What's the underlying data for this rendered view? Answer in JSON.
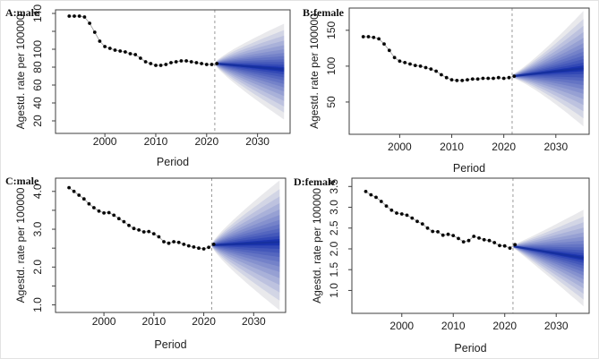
{
  "figure": {
    "description": "Four-panel fan chart figure of observed and projected age-standardized rates",
    "background": "#ffffff"
  },
  "styles": {
    "axis_color": "#3f3f3f",
    "text_color": "#1c1c1c",
    "point_color": "#080808",
    "series_line_color": "#9a9a9a",
    "cutoff_line_color": "#9b9b9b",
    "fan_inner_blue": "#1b34ae",
    "fan_outer_gray": "#e9e9ec",
    "fan_median_blue": "#16309f"
  },
  "chart_data": [
    {
      "type": "line",
      "id": "A",
      "title": "A:male",
      "ylabel": "Agestd. rate per 100000",
      "xlabel": "Period",
      "xlim": [
        1990.3,
        2036.4
      ],
      "ylim": [
        6,
        144
      ],
      "xticks": [
        2000,
        2010,
        2020,
        2030
      ],
      "yticks": [
        {
          "v": 20,
          "label": "20"
        },
        {
          "v": 40,
          "label": "40"
        },
        {
          "v": 60,
          "label": "60"
        },
        {
          "v": 80,
          "label": "80"
        },
        {
          "v": 100,
          "label": "100"
        },
        {
          "v": 120,
          "label": ""
        },
        {
          "v": 140,
          "label": "140"
        }
      ],
      "cutoff_year": 2021.6,
      "observed": {
        "years": [
          1993,
          1994,
          1995,
          1996,
          1997,
          1998,
          1999,
          2000,
          2001,
          2002,
          2003,
          2004,
          2005,
          2006,
          2007,
          2008,
          2009,
          2010,
          2011,
          2012,
          2013,
          2014,
          2015,
          2016,
          2017,
          2018,
          2019,
          2020,
          2021,
          2022
        ],
        "values": [
          137,
          137,
          137,
          136,
          129,
          119,
          109,
          103,
          101,
          99,
          98,
          97,
          95,
          94,
          90,
          86,
          84,
          82,
          82,
          83,
          85,
          86,
          87,
          87,
          86,
          85,
          84,
          83,
          83,
          84
        ]
      },
      "forecast": {
        "x_start": 2021.7,
        "x_end": 2035.2,
        "median_start": 84,
        "median_end": 77.5,
        "upper_half_end": 51,
        "lower_half_end": 56,
        "curve": 0.85
      }
    },
    {
      "type": "line",
      "id": "B",
      "title": "B:female",
      "ylabel": "Agestd. rate per 100000",
      "xlabel": "Period",
      "xlim": [
        1990.3,
        2036.4
      ],
      "ylim": [
        5,
        181
      ],
      "xticks": [
        2000,
        2010,
        2020,
        2030
      ],
      "yticks": [
        {
          "v": 50,
          "label": "50"
        },
        {
          "v": 100,
          "label": "100"
        },
        {
          "v": 150,
          "label": "150"
        }
      ],
      "cutoff_year": 2021.6,
      "observed": {
        "years": [
          1993,
          1994,
          1995,
          1996,
          1997,
          1998,
          1999,
          2000,
          2001,
          2002,
          2003,
          2004,
          2005,
          2006,
          2007,
          2008,
          2009,
          2010,
          2011,
          2012,
          2013,
          2014,
          2015,
          2016,
          2017,
          2018,
          2019,
          2020,
          2021,
          2022
        ],
        "values": [
          141,
          141,
          140,
          138,
          131,
          122,
          112,
          107,
          105,
          103,
          101,
          100,
          98,
          96,
          93,
          88,
          84,
          81,
          80,
          80,
          81,
          82,
          82,
          83,
          83,
          83,
          84,
          83,
          84,
          86
        ]
      },
      "forecast": {
        "x_start": 2021.7,
        "x_end": 2035.3,
        "median_start": 86,
        "median_end": 97,
        "upper_half_end": 80,
        "lower_half_end": 81,
        "curve": 1.2
      }
    },
    {
      "type": "line",
      "id": "C",
      "title": "C:male",
      "ylabel": "Agestd. rate per 100000",
      "xlabel": "Period",
      "xlim": [
        1990.3,
        2036.4
      ],
      "ylim": [
        0.8,
        4.35
      ],
      "xticks": [
        2000,
        2010,
        2020,
        2030
      ],
      "yticks": [
        {
          "v": 1,
          "label": "1.0"
        },
        {
          "v": 1.5,
          "label": ""
        },
        {
          "v": 2,
          "label": "2.0"
        },
        {
          "v": 2.5,
          "label": ""
        },
        {
          "v": 3,
          "label": "3.0"
        },
        {
          "v": 3.5,
          "label": ""
        },
        {
          "v": 4,
          "label": "4.0"
        }
      ],
      "cutoff_year": 2021.6,
      "observed": {
        "years": [
          1993,
          1994,
          1995,
          1996,
          1997,
          1998,
          1999,
          2000,
          2001,
          2002,
          2003,
          2004,
          2005,
          2006,
          2007,
          2008,
          2009,
          2010,
          2011,
          2012,
          2013,
          2014,
          2015,
          2016,
          2017,
          2018,
          2019,
          2020,
          2021,
          2022
        ],
        "values": [
          4.1,
          4.0,
          3.9,
          3.8,
          3.67,
          3.57,
          3.48,
          3.43,
          3.44,
          3.37,
          3.28,
          3.2,
          3.1,
          3.02,
          2.98,
          2.93,
          2.94,
          2.88,
          2.8,
          2.67,
          2.63,
          2.67,
          2.65,
          2.6,
          2.56,
          2.53,
          2.5,
          2.48,
          2.52,
          2.6
        ]
      },
      "forecast": {
        "x_start": 2021.7,
        "x_end": 2035.2,
        "median_start": 2.58,
        "median_end": 2.66,
        "upper_half_end": 1.63,
        "lower_half_end": 1.8,
        "curve": 0.85
      }
    },
    {
      "type": "line",
      "id": "D",
      "title": "D:female",
      "ylabel": "Agestd. rate per 100000",
      "xlabel": "Period",
      "xlim": [
        1990.3,
        2036.4
      ],
      "ylim": [
        0.45,
        3.7
      ],
      "xticks": [
        2000,
        2010,
        2020,
        2030
      ],
      "yticks": [
        {
          "v": 1,
          "label": "1.0"
        },
        {
          "v": 1.5,
          "label": "1.5"
        },
        {
          "v": 2,
          "label": "2.0"
        },
        {
          "v": 2.5,
          "label": "2.5"
        },
        {
          "v": 3,
          "label": "3.0"
        },
        {
          "v": 3.5,
          "label": "3.5"
        }
      ],
      "cutoff_year": 2021.6,
      "observed": {
        "years": [
          1993,
          1994,
          1995,
          1996,
          1997,
          1998,
          1999,
          2000,
          2001,
          2002,
          2003,
          2004,
          2005,
          2006,
          2007,
          2008,
          2009,
          2010,
          2011,
          2012,
          2013,
          2014,
          2015,
          2016,
          2017,
          2018,
          2019,
          2020,
          2021,
          2022
        ],
        "values": [
          3.38,
          3.3,
          3.24,
          3.14,
          3.03,
          2.93,
          2.86,
          2.84,
          2.81,
          2.74,
          2.66,
          2.6,
          2.5,
          2.42,
          2.41,
          2.33,
          2.35,
          2.32,
          2.25,
          2.17,
          2.2,
          2.3,
          2.26,
          2.22,
          2.2,
          2.15,
          2.08,
          2.07,
          2.02,
          2.1
        ]
      },
      "forecast": {
        "x_start": 2021.7,
        "x_end": 2035.3,
        "median_start": 2.06,
        "median_end": 1.78,
        "upper_half_end": 1.16,
        "lower_half_end": 1.16,
        "curve": 1.05
      }
    }
  ]
}
